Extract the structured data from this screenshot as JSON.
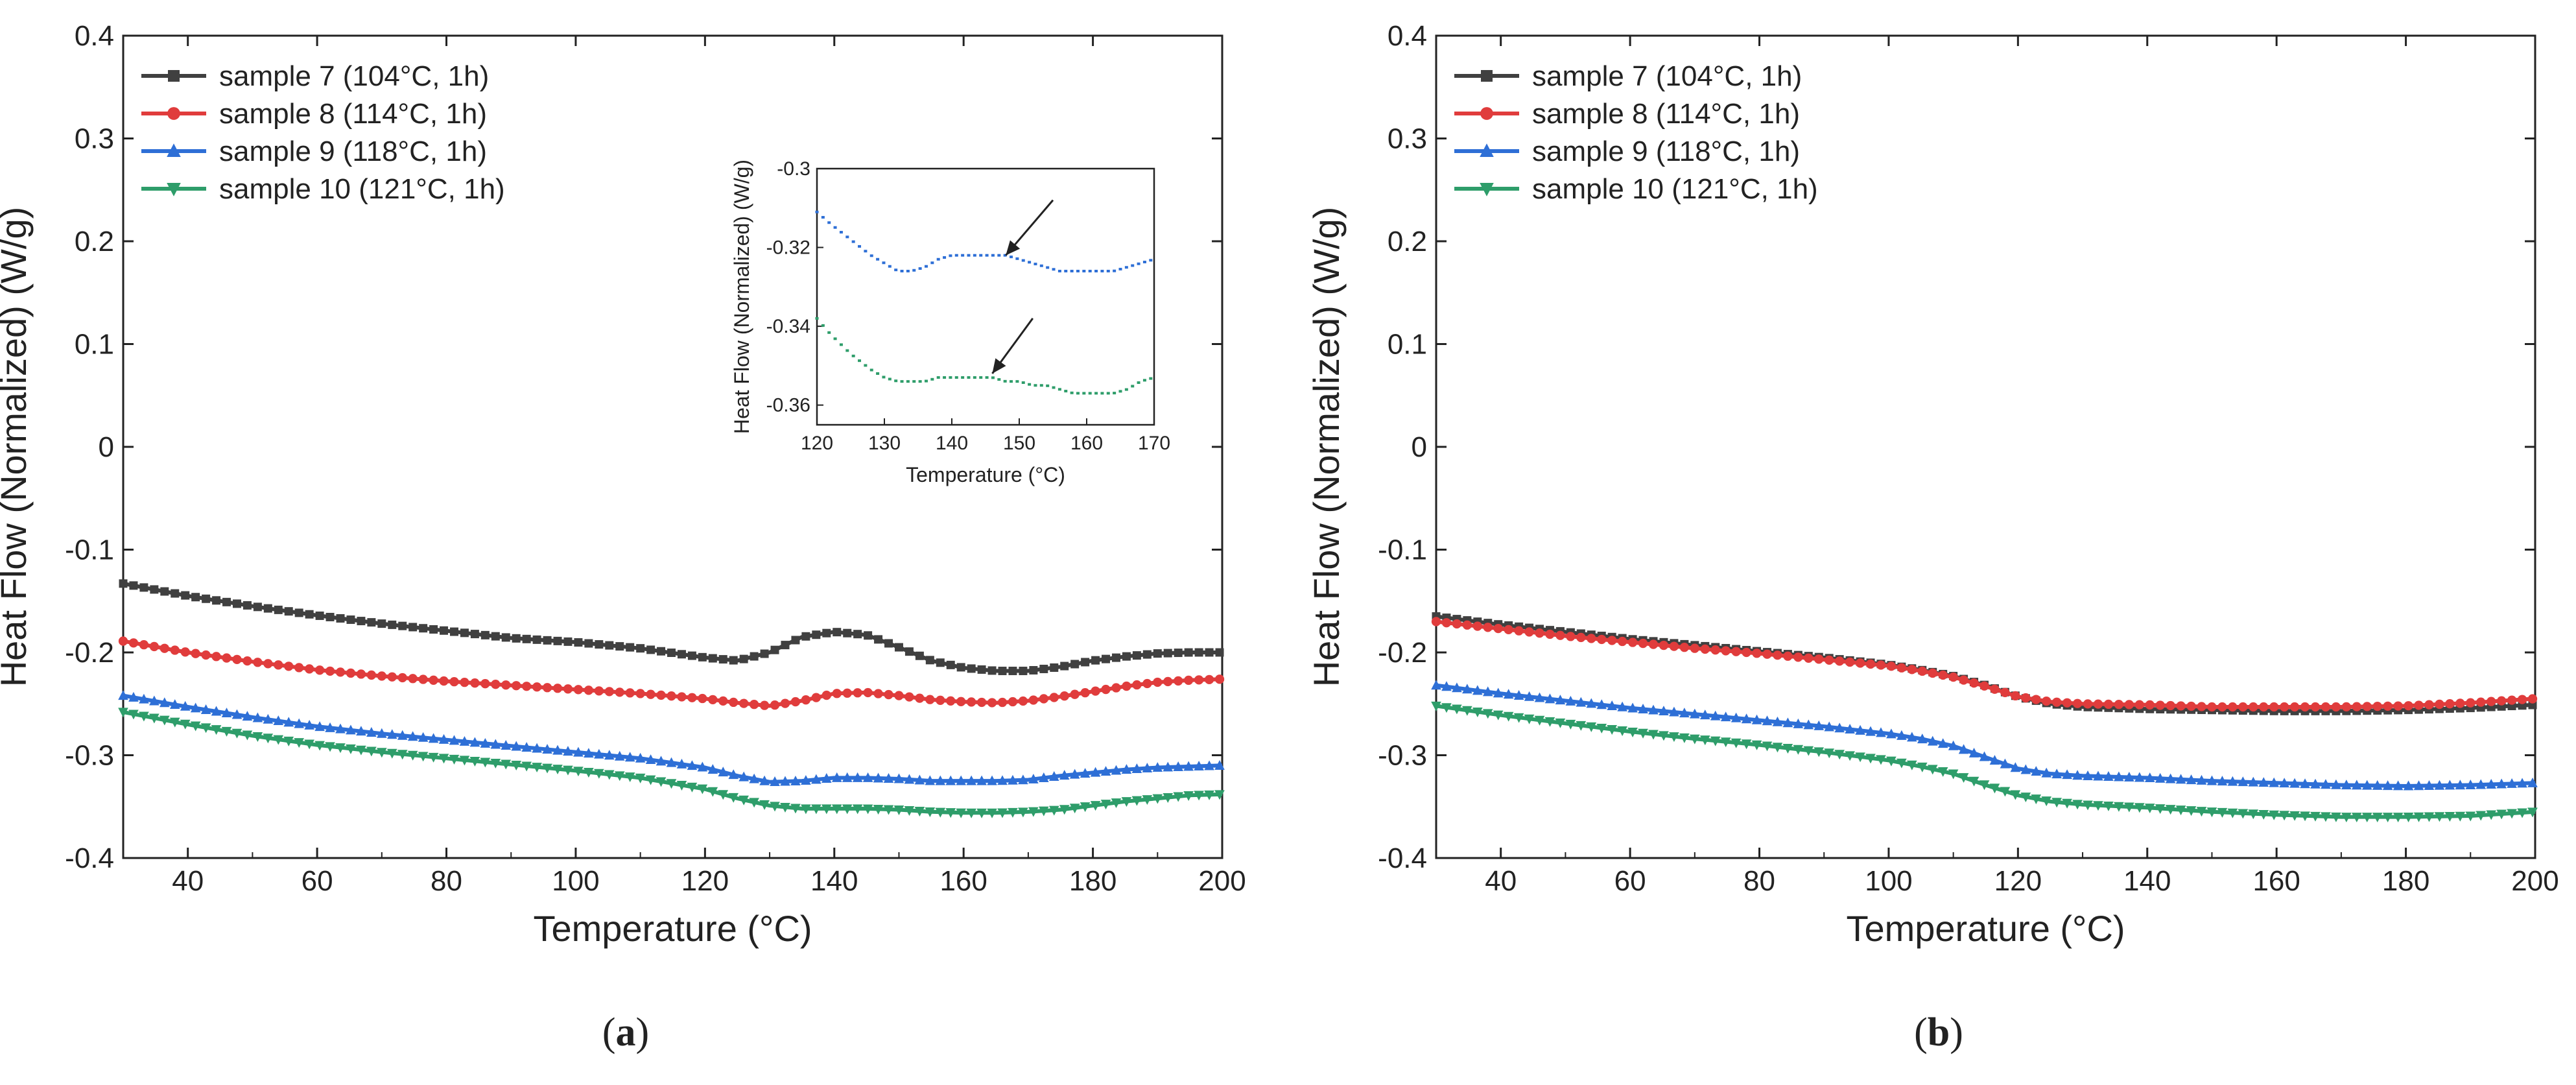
{
  "figure": {
    "panels": [
      {
        "label_open": "(",
        "label_letter": "a",
        "label_close": ")"
      },
      {
        "label_open": "(",
        "label_letter": "b",
        "label_close": ")"
      }
    ]
  },
  "chart_data": [
    {
      "id": "a",
      "type": "line",
      "title": "",
      "xlabel": "Temperature (°C)",
      "ylabel": "Heat Flow (Normalized) (W/g)",
      "xlim": [
        30,
        200
      ],
      "ylim": [
        -0.4,
        0.4
      ],
      "xticks": [
        40,
        60,
        80,
        100,
        120,
        140,
        160,
        180,
        200
      ],
      "yticks": [
        -0.4,
        -0.3,
        -0.2,
        -0.1,
        0,
        0.1,
        0.2,
        0.3,
        0.4
      ],
      "xtick_labels": [
        "40",
        "60",
        "80",
        "100",
        "120",
        "140",
        "160",
        "180",
        "200"
      ],
      "ytick_labels": [
        "-0.4",
        "-0.3",
        "-0.2",
        "-0.1",
        "0",
        "0.1",
        "0.2",
        "0.3",
        "0.4"
      ],
      "legend_position": "top-left",
      "series": [
        {
          "name": "sample 7 (104°C, 1h)",
          "color": "#404040",
          "marker": "square",
          "x": [
            30,
            40,
            50,
            60,
            70,
            80,
            90,
            100,
            110,
            120,
            125,
            130,
            135,
            140,
            145,
            150,
            155,
            160,
            165,
            170,
            175,
            180,
            185,
            190,
            195,
            200
          ],
          "y": [
            -0.133,
            -0.145,
            -0.155,
            -0.164,
            -0.172,
            -0.179,
            -0.186,
            -0.19,
            -0.196,
            -0.205,
            -0.208,
            -0.2,
            -0.185,
            -0.18,
            -0.183,
            -0.195,
            -0.208,
            -0.215,
            -0.218,
            -0.218,
            -0.214,
            -0.208,
            -0.204,
            -0.201,
            -0.2,
            -0.2
          ]
        },
        {
          "name": "sample 8 (114°C, 1h)",
          "color": "#e03c3c",
          "marker": "circle",
          "x": [
            30,
            40,
            50,
            60,
            70,
            80,
            90,
            100,
            110,
            120,
            125,
            130,
            135,
            140,
            145,
            150,
            155,
            160,
            165,
            170,
            175,
            180,
            185,
            190,
            195,
            200
          ],
          "y": [
            -0.189,
            -0.2,
            -0.209,
            -0.217,
            -0.223,
            -0.228,
            -0.232,
            -0.236,
            -0.24,
            -0.245,
            -0.249,
            -0.252,
            -0.247,
            -0.24,
            -0.239,
            -0.242,
            -0.246,
            -0.248,
            -0.249,
            -0.247,
            -0.243,
            -0.238,
            -0.233,
            -0.229,
            -0.227,
            -0.226
          ]
        },
        {
          "name": "sample 9 (118°C, 1h)",
          "color": "#2e6fd6",
          "marker": "triangle-up",
          "x": [
            30,
            40,
            50,
            60,
            70,
            80,
            90,
            100,
            110,
            120,
            125,
            130,
            135,
            140,
            145,
            150,
            155,
            160,
            165,
            170,
            175,
            180,
            185,
            190,
            195,
            200
          ],
          "y": [
            -0.242,
            -0.253,
            -0.263,
            -0.272,
            -0.279,
            -0.285,
            -0.291,
            -0.297,
            -0.303,
            -0.312,
            -0.32,
            -0.326,
            -0.325,
            -0.322,
            -0.322,
            -0.323,
            -0.325,
            -0.325,
            -0.325,
            -0.324,
            -0.32,
            -0.317,
            -0.314,
            -0.312,
            -0.311,
            -0.31
          ]
        },
        {
          "name": "sample 10 (121°C, 1h)",
          "color": "#2e9d6a",
          "marker": "triangle-down",
          "x": [
            30,
            40,
            50,
            60,
            70,
            80,
            90,
            100,
            110,
            120,
            125,
            130,
            135,
            140,
            145,
            150,
            155,
            160,
            165,
            170,
            175,
            180,
            185,
            190,
            195,
            200
          ],
          "y": [
            -0.258,
            -0.27,
            -0.281,
            -0.29,
            -0.297,
            -0.303,
            -0.309,
            -0.315,
            -0.322,
            -0.333,
            -0.342,
            -0.349,
            -0.352,
            -0.352,
            -0.352,
            -0.353,
            -0.355,
            -0.356,
            -0.356,
            -0.355,
            -0.353,
            -0.349,
            -0.345,
            -0.342,
            -0.339,
            -0.338
          ]
        }
      ],
      "inset": {
        "xlabel": "Temperature (°C)",
        "ylabel": "Heat Flow (Normalized) (W/g)",
        "xlim": [
          120,
          170
        ],
        "ylim": [
          -0.365,
          -0.3
        ],
        "xticks": [
          120,
          130,
          140,
          150,
          160,
          170
        ],
        "yticks": [
          -0.36,
          -0.34,
          -0.32,
          -0.3
        ],
        "xtick_labels": [
          "120",
          "130",
          "140",
          "150",
          "160",
          "170"
        ],
        "ytick_labels": [
          "-0.36",
          "-0.34",
          "-0.32",
          "-0.3"
        ],
        "series": [
          {
            "name": "sample 9 (118°C, 1h)",
            "color": "#2e6fd6",
            "x": [
              120,
              122,
              125,
              128,
              130,
              132,
              134,
              136,
              138,
              140,
              142,
              144,
              146,
              148,
              150,
              152,
              154,
              156,
              158,
              160,
              162,
              164,
              166,
              168,
              170
            ],
            "y": [
              -0.311,
              -0.314,
              -0.318,
              -0.322,
              -0.324,
              -0.326,
              -0.326,
              -0.325,
              -0.323,
              -0.322,
              -0.322,
              -0.322,
              -0.322,
              -0.322,
              -0.323,
              -0.324,
              -0.325,
              -0.326,
              -0.326,
              -0.326,
              -0.326,
              -0.326,
              -0.325,
              -0.324,
              -0.323
            ]
          },
          {
            "name": "sample 10 (121°C, 1h)",
            "color": "#2e9d6a",
            "x": [
              120,
              122,
              125,
              128,
              130,
              132,
              134,
              136,
              138,
              140,
              142,
              144,
              146,
              148,
              150,
              152,
              154,
              156,
              158,
              160,
              162,
              164,
              166,
              168,
              170
            ],
            "y": [
              -0.338,
              -0.342,
              -0.347,
              -0.351,
              -0.353,
              -0.354,
              -0.354,
              -0.354,
              -0.353,
              -0.353,
              -0.353,
              -0.353,
              -0.353,
              -0.354,
              -0.354,
              -0.355,
              -0.355,
              -0.356,
              -0.357,
              -0.357,
              -0.357,
              -0.357,
              -0.356,
              -0.354,
              -0.353
            ]
          }
        ],
        "annotations": [
          {
            "type": "arrow",
            "from": [
              155,
              -0.308
            ],
            "to": [
              148,
              -0.322
            ]
          },
          {
            "type": "arrow",
            "from": [
              152,
              -0.338
            ],
            "to": [
              146,
              -0.352
            ]
          }
        ]
      }
    },
    {
      "id": "b",
      "type": "line",
      "title": "",
      "xlabel": "Temperature (°C)",
      "ylabel": "Heat Flow (Normalized) (W/g)",
      "xlim": [
        30,
        200
      ],
      "ylim": [
        -0.4,
        0.4
      ],
      "xticks": [
        40,
        60,
        80,
        100,
        120,
        140,
        160,
        180,
        200
      ],
      "yticks": [
        -0.4,
        -0.3,
        -0.2,
        -0.1,
        0,
        0.1,
        0.2,
        0.3,
        0.4
      ],
      "xtick_labels": [
        "40",
        "60",
        "80",
        "100",
        "120",
        "140",
        "160",
        "180",
        "200"
      ],
      "ytick_labels": [
        "-0.4",
        "-0.3",
        "-0.2",
        "-0.1",
        "0",
        "0.1",
        "0.2",
        "0.3",
        "0.4"
      ],
      "legend_position": "top-left",
      "series": [
        {
          "name": "sample 7 (104°C, 1h)",
          "color": "#404040",
          "marker": "square",
          "x": [
            30,
            40,
            50,
            60,
            70,
            80,
            90,
            100,
            105,
            110,
            115,
            120,
            125,
            130,
            140,
            150,
            160,
            170,
            180,
            190,
            200
          ],
          "y": [
            -0.165,
            -0.173,
            -0.18,
            -0.187,
            -0.193,
            -0.199,
            -0.205,
            -0.212,
            -0.217,
            -0.223,
            -0.232,
            -0.243,
            -0.25,
            -0.253,
            -0.255,
            -0.256,
            -0.257,
            -0.257,
            -0.256,
            -0.254,
            -0.251
          ]
        },
        {
          "name": "sample 8 (114°C, 1h)",
          "color": "#e03c3c",
          "marker": "circle",
          "x": [
            30,
            40,
            50,
            60,
            70,
            80,
            90,
            100,
            105,
            110,
            115,
            120,
            125,
            130,
            140,
            150,
            160,
            170,
            180,
            190,
            200
          ],
          "y": [
            -0.17,
            -0.177,
            -0.184,
            -0.19,
            -0.196,
            -0.201,
            -0.207,
            -0.213,
            -0.218,
            -0.224,
            -0.233,
            -0.243,
            -0.248,
            -0.25,
            -0.251,
            -0.253,
            -0.253,
            -0.253,
            -0.252,
            -0.249,
            -0.245
          ]
        },
        {
          "name": "sample 9 (118°C, 1h)",
          "color": "#2e6fd6",
          "marker": "triangle-up",
          "x": [
            30,
            40,
            50,
            60,
            70,
            80,
            90,
            100,
            105,
            110,
            115,
            120,
            125,
            130,
            140,
            150,
            160,
            170,
            180,
            190,
            200
          ],
          "y": [
            -0.232,
            -0.24,
            -0.247,
            -0.254,
            -0.26,
            -0.266,
            -0.272,
            -0.279,
            -0.284,
            -0.291,
            -0.302,
            -0.313,
            -0.318,
            -0.32,
            -0.322,
            -0.325,
            -0.327,
            -0.329,
            -0.33,
            -0.329,
            -0.327
          ]
        },
        {
          "name": "sample 10 (121°C, 1h)",
          "color": "#2e9d6a",
          "marker": "triangle-down",
          "x": [
            30,
            40,
            50,
            60,
            70,
            80,
            90,
            100,
            105,
            110,
            115,
            120,
            125,
            130,
            140,
            150,
            160,
            170,
            180,
            190,
            200
          ],
          "y": [
            -0.252,
            -0.261,
            -0.269,
            -0.277,
            -0.284,
            -0.29,
            -0.297,
            -0.305,
            -0.311,
            -0.318,
            -0.329,
            -0.339,
            -0.345,
            -0.348,
            -0.351,
            -0.355,
            -0.358,
            -0.36,
            -0.36,
            -0.359,
            -0.355
          ]
        }
      ]
    }
  ]
}
